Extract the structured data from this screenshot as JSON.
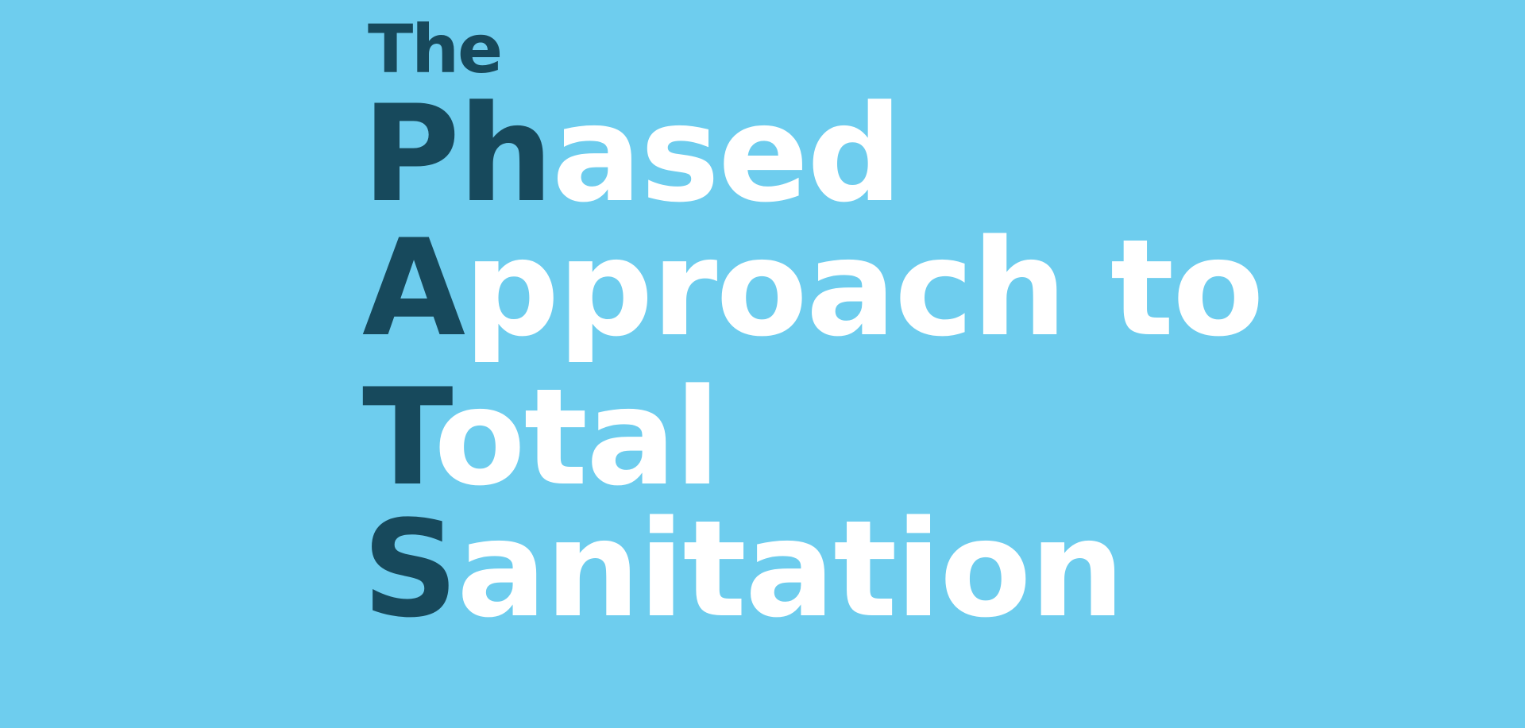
{
  "title": {
    "prefix": "The",
    "lines": [
      {
        "accent": "Ph",
        "rest": "ased"
      },
      {
        "accent": "A",
        "rest": "pproach to"
      },
      {
        "accent": "T",
        "rest": "otal"
      },
      {
        "accent": "S",
        "rest": "anitation"
      }
    ]
  },
  "colors": {
    "background": "#6ecdee",
    "accent": "#17495c",
    "text": "#ffffff"
  }
}
